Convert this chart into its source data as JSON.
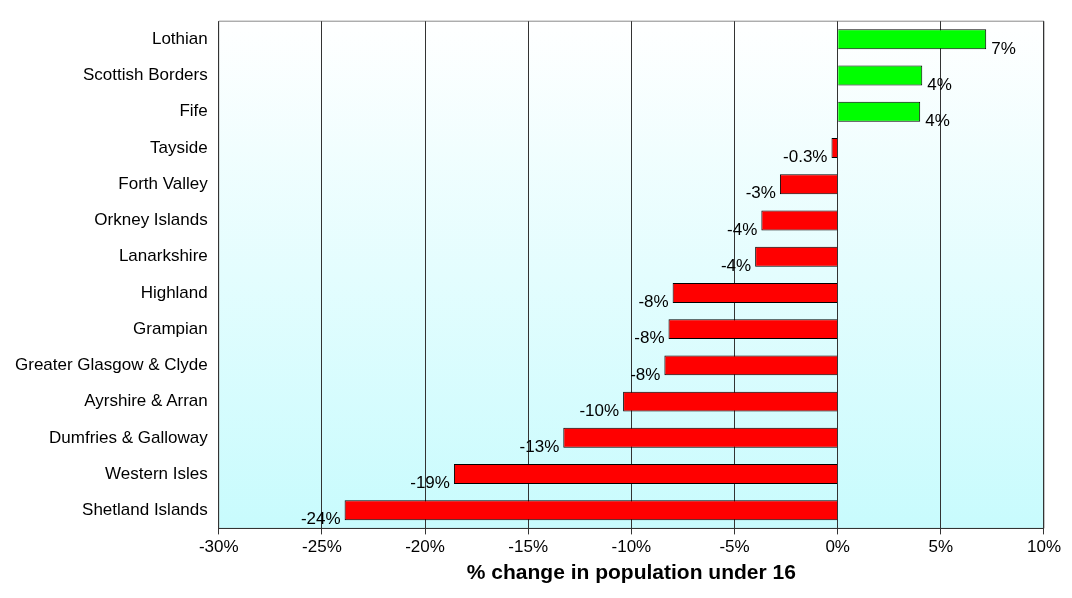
{
  "chart_data": {
    "type": "bar",
    "orientation": "horizontal",
    "xlabel": "% change in population under 16",
    "categories": [
      "Lothian",
      "Scottish Borders",
      "Fife",
      "Tayside",
      "Forth Valley",
      "Orkney Islands",
      "Lanarkshire",
      "Highland",
      "Grampian",
      "Greater Glasgow & Clyde",
      "Ayrshire & Arran",
      "Dumfries & Galloway",
      "Western Isles",
      "Shetland Islands"
    ],
    "values": [
      7.2,
      4.1,
      4.0,
      -0.3,
      -2.8,
      -3.7,
      -4.0,
      -8.0,
      -8.2,
      -8.4,
      -10.4,
      -13.3,
      -18.6,
      -23.9
    ],
    "value_labels": [
      "7%",
      "4%",
      "4%",
      "-0.3%",
      "-3%",
      "-4%",
      "-4%",
      "-8%",
      "-8%",
      "-8%",
      "-10%",
      "-13%",
      "-19%",
      "-24%"
    ],
    "colors": [
      "#00ff00",
      "#00ff00",
      "#00ff00",
      "#ff0000",
      "#ff0000",
      "#ff0000",
      "#ff0000",
      "#ff0000",
      "#ff0000",
      "#ff0000",
      "#ff0000",
      "#ff0000",
      "#ff0000",
      "#ff0000"
    ],
    "xlim": [
      -30,
      10
    ],
    "xticks": [
      {
        "value": -30,
        "label": "-30%"
      },
      {
        "value": -25,
        "label": "-25%"
      },
      {
        "value": -20,
        "label": "-20%"
      },
      {
        "value": -15,
        "label": "-15%"
      },
      {
        "value": -10,
        "label": "-10%"
      },
      {
        "value": -5,
        "label": "-5%"
      },
      {
        "value": 0,
        "label": "0%"
      },
      {
        "value": 5,
        "label": "5%"
      },
      {
        "value": 10,
        "label": "10%"
      }
    ],
    "grid": "x",
    "legend": false
  }
}
